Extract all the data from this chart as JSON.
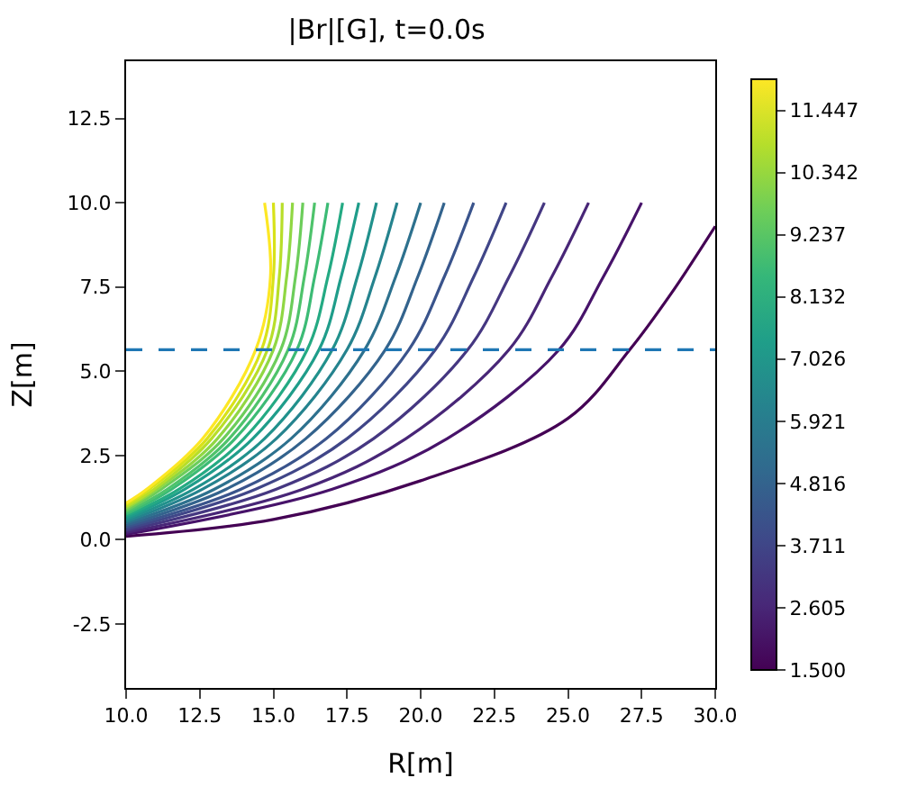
{
  "chart_data": {
    "type": "line",
    "title": "|Br|[G], t=0.0s",
    "xlabel": "R[m]",
    "ylabel": "Z[m]",
    "series": [
      {
        "color": "#440154",
        "x": [
          10,
          15,
          20,
          25,
          27.1,
          28.5,
          30
        ],
        "values": [
          0.1,
          0.6,
          1.75,
          3.6,
          5.64,
          7.3,
          9.3
        ]
      },
      {
        "color": "#47136a",
        "x": [
          10,
          17.0,
          20.9,
          24.7,
          26.2,
          27.5
        ],
        "values": [
          0.16,
          1.5,
          3,
          5.64,
          7.8,
          10
        ]
      },
      {
        "color": "#482677",
        "x": [
          10,
          16.0,
          19.5,
          23.0,
          24.45,
          25.7
        ],
        "values": [
          0.21,
          1.5,
          3,
          5.64,
          7.8,
          10
        ]
      },
      {
        "color": "#453781",
        "x": [
          10,
          15.1,
          18.4,
          21.6,
          23.0,
          24.2
        ],
        "values": [
          0.27,
          1.5,
          3,
          5.64,
          7.8,
          10
        ]
      },
      {
        "color": "#404688",
        "x": [
          10,
          14.4,
          17.5,
          20.5,
          21.8,
          22.9
        ],
        "values": [
          0.32,
          1.5,
          3,
          5.64,
          7.8,
          10
        ]
      },
      {
        "color": "#3a548c",
        "x": [
          10,
          13.9,
          16.8,
          19.6,
          20.8,
          21.8
        ],
        "values": [
          0.38,
          1.5,
          3,
          5.64,
          7.8,
          10
        ]
      },
      {
        "color": "#33638d",
        "x": [
          10,
          13.4,
          16.1,
          18.8,
          19.9,
          20.8
        ],
        "values": [
          0.43,
          1.5,
          3,
          5.64,
          7.8,
          10
        ]
      },
      {
        "color": "#2d718e",
        "x": [
          10,
          13.0,
          15.6,
          18.1,
          19.15,
          20.0
        ],
        "values": [
          0.49,
          1.5,
          3,
          5.64,
          7.8,
          10
        ]
      },
      {
        "color": "#25838e",
        "x": [
          10,
          12.6,
          15.1,
          17.5,
          18.45,
          19.2
        ],
        "values": [
          0.54,
          1.5,
          3,
          5.64,
          7.8,
          10
        ]
      },
      {
        "color": "#21918c",
        "x": [
          10,
          12.3,
          14.7,
          17.0,
          17.85,
          18.5
        ],
        "values": [
          0.6,
          1.5,
          3,
          5.64,
          7.8,
          10
        ]
      },
      {
        "color": "#1f9d8a",
        "x": [
          10,
          12.0,
          14.3,
          16.55,
          17.3,
          17.9
        ],
        "values": [
          0.65,
          1.5,
          3,
          5.64,
          7.8,
          10
        ]
      },
      {
        "color": "#24aa83",
        "x": [
          10,
          11.8,
          14.0,
          16.15,
          16.85,
          17.35
        ],
        "values": [
          0.71,
          1.5,
          3,
          5.64,
          7.8,
          10
        ]
      },
      {
        "color": "#3cbb75",
        "x": [
          10,
          11.55,
          13.7,
          15.8,
          16.4,
          16.85
        ],
        "values": [
          0.76,
          1.5,
          3,
          5.64,
          7.8,
          10
        ]
      },
      {
        "color": "#4ec36b",
        "x": [
          10,
          11.4,
          13.5,
          15.5,
          16.05,
          16.4
        ],
        "values": [
          0.82,
          1.5,
          3,
          5.64,
          7.8,
          10
        ]
      },
      {
        "color": "#6ccd5a",
        "x": [
          10,
          11.2,
          13.3,
          15.25,
          15.75,
          16.0
        ],
        "values": [
          0.87,
          1.5,
          3,
          5.64,
          7.8,
          10
        ]
      },
      {
        "color": "#90d743",
        "x": [
          10,
          11.05,
          13.1,
          15.0,
          15.45,
          15.65
        ],
        "values": [
          0.93,
          1.5,
          3,
          5.64,
          7.8,
          10
        ]
      },
      {
        "color": "#b8de29",
        "x": [
          10,
          10.95,
          12.9,
          14.8,
          15.2,
          15.3
        ],
        "values": [
          0.98,
          1.5,
          3,
          5.64,
          7.8,
          10
        ]
      },
      {
        "color": "#d8e219",
        "x": [
          10,
          10.8,
          12.75,
          14.6,
          15.0,
          15.0
        ],
        "values": [
          1.04,
          1.5,
          3,
          5.64,
          7.8,
          10
        ]
      },
      {
        "color": "#fde725",
        "x": [
          10,
          10.7,
          12.6,
          14.4,
          14.9,
          14.7
        ],
        "values": [
          1.09,
          1.5,
          3,
          5.64,
          7.8,
          10
        ]
      }
    ],
    "xlim": [
      10,
      30
    ],
    "ylim": [
      -4.4,
      14.2
    ],
    "xticks": [
      {
        "value": 10,
        "label": "10.0"
      },
      12.5,
      {
        "value": 15,
        "label": "15.0"
      },
      17.5,
      {
        "value": 20,
        "label": "20.0"
      },
      22.5,
      {
        "value": 25,
        "label": "25.0"
      },
      27.5,
      {
        "value": 30,
        "label": "30.0"
      }
    ],
    "yticks": [
      -2.5,
      {
        "value": 0,
        "label": "0.0"
      },
      2.5,
      {
        "value": 5,
        "label": "5.0"
      },
      7.5,
      {
        "value": 10,
        "label": "10.0"
      },
      12.5
    ],
    "clim": [
      1.5,
      12.0
    ],
    "cticks": [
      {
        "value": 1.5,
        "label": "1.500"
      },
      2.605,
      3.711,
      4.816,
      5.921,
      7.026,
      8.132,
      9.237,
      10.342,
      11.447
    ],
    "ref_lines": [
      {
        "axis": "y",
        "value": 5.64,
        "color": "#1f77b4",
        "line_style": "dashed"
      }
    ]
  }
}
